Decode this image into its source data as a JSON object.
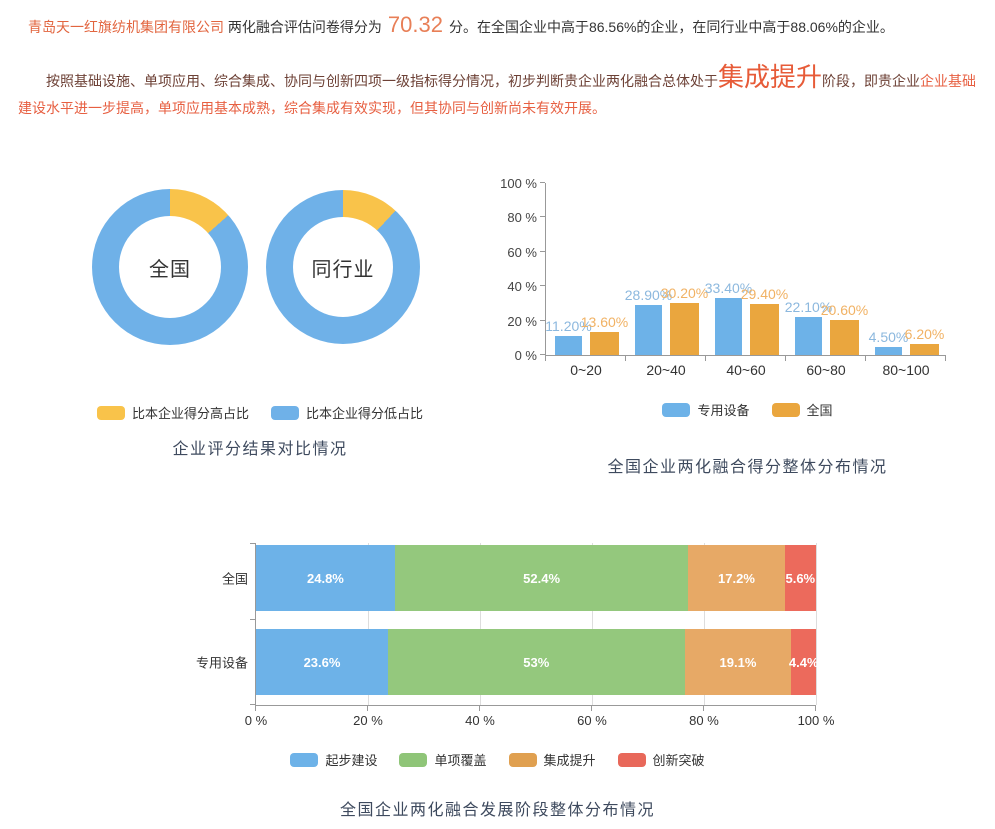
{
  "intro": {
    "company": "青岛天一红旗纺机集团有限公司",
    "score_prefix": " 两化融合评估问卷得分为",
    "score": "70.32",
    "score_suffix": "分。在全国企业中高于86.56%的企业，在同行业中高于88.06%的企业。",
    "stage_seg1": "按照基础设施、单项应用、综合集成、协同与创新四项一级指标得分情况，初步判断贵企业两化融合总体处于",
    "stage_name": "集成提升",
    "stage_seg2": "阶段，即贵企业",
    "stage_seg3": "企业基础建设水平进一步提高，单项应用基本成熟，综合集成有效实现，但其协同与创新尚未有效开展。"
  },
  "chart_data": [
    {
      "type": "pie",
      "title": "企业评分结果对比情况",
      "donuts": [
        {
          "label": "全国",
          "slices": [
            {
              "name": "比本企业得分高占比",
              "value": 13.44,
              "color": "#f9c34a"
            },
            {
              "name": "比本企业得分低占比",
              "value": 86.56,
              "color": "#6fb1e8"
            }
          ]
        },
        {
          "label": "同行业",
          "slices": [
            {
              "name": "比本企业得分高占比",
              "value": 11.94,
              "color": "#f9c34a"
            },
            {
              "name": "比本企业得分低占比",
              "value": 88.06,
              "color": "#6fb1e8"
            }
          ]
        }
      ],
      "legend": [
        {
          "label": "比本企业得分高占比",
          "color": "#f9c34a"
        },
        {
          "label": "比本企业得分低占比",
          "color": "#6fb1e8"
        }
      ]
    },
    {
      "type": "bar",
      "title": "全国企业两化融合得分整体分布情况",
      "categories": [
        "0~20",
        "20~40",
        "40~60",
        "60~80",
        "80~100"
      ],
      "series": [
        {
          "name": "专用设备",
          "color": "#6db2e8",
          "label_color": "#8cb8de",
          "values": [
            11.2,
            28.9,
            33.4,
            22.1,
            4.5
          ],
          "value_labels": [
            "11.20%",
            "28.90%",
            "33.40%",
            "22.10%",
            "4.50%"
          ]
        },
        {
          "name": "全国",
          "color": "#eaa63e",
          "label_color": "#f1b264",
          "values": [
            13.6,
            30.2,
            29.4,
            20.6,
            6.2
          ],
          "value_labels": [
            "13.60%",
            "30.20%",
            "29.40%",
            "20.60%",
            "6.20%"
          ]
        }
      ],
      "ylim": [
        0,
        100
      ],
      "yticks": [
        "0 %",
        "20 %",
        "40 %",
        "60 %",
        "80 %",
        "100 %"
      ],
      "legend": [
        {
          "label": "专用设备",
          "color": "#6db2e8"
        },
        {
          "label": "全国",
          "color": "#eaa63e"
        }
      ]
    },
    {
      "type": "bar-stacked-horizontal",
      "title": "全国企业两化融合发展阶段整体分布情况",
      "categories": [
        "全国",
        "专用设备"
      ],
      "series": [
        {
          "name": "起步建设",
          "color": "#6db2e8",
          "values": [
            24.8,
            23.6
          ],
          "labels": [
            "24.8%",
            "23.6%"
          ]
        },
        {
          "name": "单项覆盖",
          "color": "#94c87d",
          "values": [
            52.4,
            53.0
          ],
          "labels": [
            "52.4%",
            "53%"
          ]
        },
        {
          "name": "集成提升",
          "color": "#e7a966",
          "values": [
            17.2,
            19.1
          ],
          "labels": [
            "17.2%",
            "19.1%"
          ]
        },
        {
          "name": "创新突破",
          "color": "#ec6a5c",
          "values": [
            5.6,
            4.4
          ],
          "labels": [
            "5.6%",
            "4.4%"
          ]
        }
      ],
      "xlim": [
        0,
        100
      ],
      "xticks": [
        "0 %",
        "20 %",
        "40 %",
        "60 %",
        "80 %",
        "100 %"
      ],
      "legend": [
        {
          "label": "起步建设",
          "color": "#6db2e8"
        },
        {
          "label": "单项覆盖",
          "color": "#8fc578"
        },
        {
          "label": "集成提升",
          "color": "#e0a050"
        },
        {
          "label": "创新突破",
          "color": "#e8685a"
        }
      ]
    }
  ]
}
